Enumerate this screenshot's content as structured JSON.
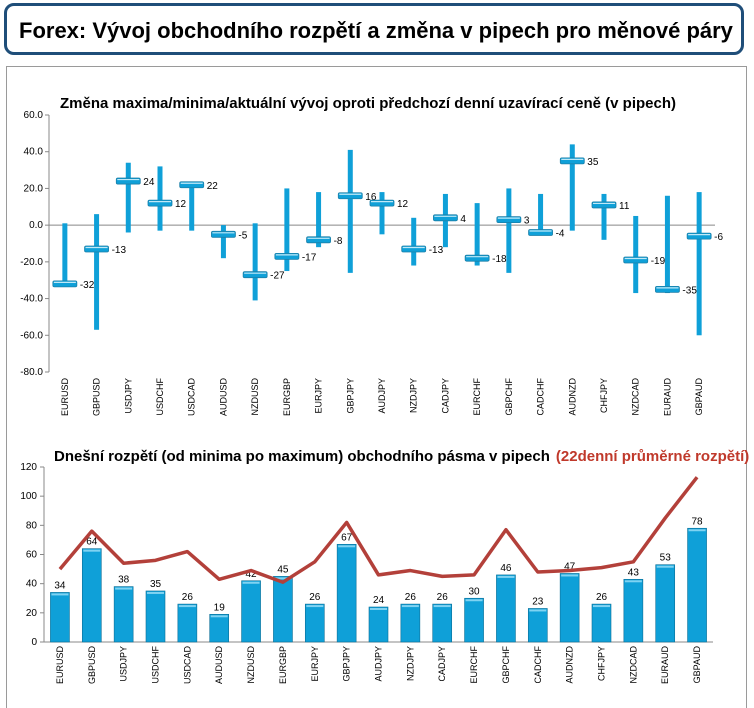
{
  "page": {
    "title": "Forex: Vývoj obchodního rozpětí a změna v pipech pro měnové páry"
  },
  "colors": {
    "bar": "#0fa0d8",
    "line": "#b3403a",
    "header_border": "#1f4e79",
    "subtitle_accent": "#c0392b"
  },
  "chart_data": [
    {
      "type": "bar",
      "subtype": "range-with-marker",
      "title": "Změna maxima/minima/aktuální vývoj oproti předchozí denní uzavírací ceně (v pipech)",
      "ylim": [
        -80,
        60
      ],
      "yticks": [
        "60.0",
        "40.0",
        "20.0",
        "0.0",
        "-20.0",
        "-40.0",
        "-60.0",
        "-80.0"
      ],
      "ytick_values": [
        60,
        40,
        20,
        0,
        -20,
        -40,
        -60,
        -80
      ],
      "categories": [
        "EURUSD",
        "GBPUSD",
        "USDJPY",
        "USDCHF",
        "USDCAD",
        "AUDUSD",
        "NZDUSD",
        "EURGBP",
        "EURJPY",
        "GBPJPY",
        "AUDJPY",
        "NZDJPY",
        "CADJPY",
        "EURCHF",
        "GBPCHF",
        "CADCHF",
        "AUDNZD",
        "CHFJPY",
        "NZDCAD",
        "EURAUD",
        "GBPAUD"
      ],
      "high": [
        1,
        6,
        34,
        32,
        23,
        0,
        1,
        20,
        18,
        41,
        18,
        4,
        17,
        12,
        20,
        17,
        44,
        17,
        5,
        16,
        18
      ],
      "low": [
        -33,
        -57,
        -4,
        -3,
        -3,
        -18,
        -41,
        -25,
        -12,
        -26,
        -5,
        -22,
        -12,
        -22,
        -26,
        -5,
        -3,
        -8,
        -37,
        -37,
        -60
      ],
      "current": [
        -32,
        -13,
        24,
        12,
        22,
        -5,
        -27,
        -17,
        -8,
        16,
        12,
        -13,
        4,
        -18,
        3,
        -4,
        35,
        11,
        -19,
        -35,
        -6
      ],
      "current_labels": [
        "-32",
        "-13",
        "24",
        "12",
        "22",
        "-5",
        "-27",
        "-17",
        "-8",
        "16",
        "12",
        "-13",
        "4",
        "-18",
        "3",
        "-4",
        "35",
        "11",
        "-19",
        "-35",
        "-6"
      ]
    },
    {
      "type": "bar",
      "title": "Dnešní rozpětí (od minima po maximum) obchodního pásma v pipech",
      "title_accent": "(22denní průměrné rozpětí)",
      "ylim": [
        0,
        120
      ],
      "yticks": [
        "120",
        "100",
        "80",
        "60",
        "40",
        "20",
        "0"
      ],
      "ytick_values": [
        120,
        100,
        80,
        60,
        40,
        20,
        0
      ],
      "categories": [
        "EURUSD",
        "GBPUSD",
        "USDJPY",
        "USDCHF",
        "USDCAD",
        "AUDUSD",
        "NZDUSD",
        "EURGBP",
        "EURJPY",
        "GBPJPY",
        "AUDJPY",
        "NZDJPY",
        "CADJPY",
        "EURCHF",
        "GBPCHF",
        "CADCHF",
        "AUDNZD",
        "CHFJPY",
        "NZDCAD",
        "EURAUD",
        "GBPAUD"
      ],
      "series": [
        {
          "values": [
            34,
            64,
            38,
            35,
            26,
            19,
            42,
            45,
            26,
            67,
            24,
            26,
            26,
            30,
            46,
            23,
            47,
            26,
            43,
            53,
            78
          ],
          "labels": [
            "34",
            "64",
            "38",
            "35",
            "26",
            "19",
            "42",
            "45",
            "26",
            "67",
            "24",
            "26",
            "26",
            "30",
            "46",
            "23",
            "47",
            "26",
            "43",
            "53",
            "78"
          ]
        },
        {
          "name": "22denní průměrné rozpětí",
          "type": "line",
          "values": [
            50,
            76,
            54,
            56,
            62,
            43,
            49,
            41,
            55,
            82,
            46,
            49,
            45,
            46,
            77,
            48,
            49,
            51,
            55,
            85,
            113
          ]
        }
      ]
    }
  ]
}
